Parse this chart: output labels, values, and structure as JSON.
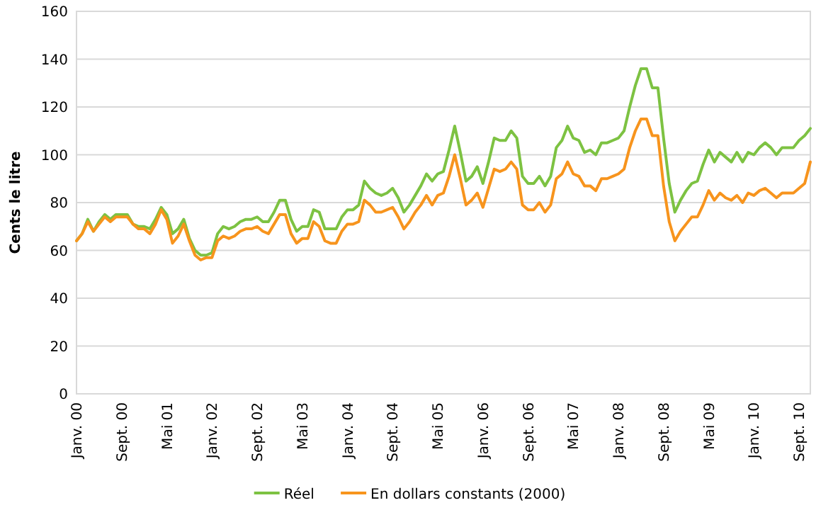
{
  "chart_data": {
    "type": "line",
    "ylabel": "Cents le litre",
    "categories": [
      "Janv. 00",
      null,
      null,
      null,
      null,
      null,
      null,
      null,
      "Sept. 00",
      null,
      null,
      null,
      null,
      null,
      null,
      null,
      "Mai 01",
      null,
      null,
      null,
      null,
      null,
      null,
      null,
      "Janv. 02",
      null,
      null,
      null,
      null,
      null,
      null,
      null,
      "Sept. 02",
      null,
      null,
      null,
      null,
      null,
      null,
      null,
      "Mai 03",
      null,
      null,
      null,
      null,
      null,
      null,
      null,
      "Janv. 04",
      null,
      null,
      null,
      null,
      null,
      null,
      null,
      "Sept. 04",
      null,
      null,
      null,
      null,
      null,
      null,
      null,
      "Mai 05",
      null,
      null,
      null,
      null,
      null,
      null,
      null,
      "Janv. 06",
      null,
      null,
      null,
      null,
      null,
      null,
      null,
      "Sept. 06",
      null,
      null,
      null,
      null,
      null,
      null,
      null,
      "Mai 07",
      null,
      null,
      null,
      null,
      null,
      null,
      null,
      "Janv. 08",
      null,
      null,
      null,
      null,
      null,
      null,
      null,
      "Sept. 08",
      null,
      null,
      null,
      null,
      null,
      null,
      null,
      "Mai 09",
      null,
      null,
      null,
      null,
      null,
      null,
      null,
      "Janv. 10",
      null,
      null,
      null,
      null,
      null,
      null,
      null,
      "Sept. 10",
      null,
      null
    ],
    "series": [
      {
        "name": "Réel",
        "color": "#7dc242",
        "values": [
          64,
          67,
          73,
          68,
          72,
          75,
          73,
          75,
          75,
          75,
          71,
          70,
          70,
          69,
          73,
          78,
          75,
          67,
          69,
          73,
          65,
          60,
          58,
          58,
          59,
          67,
          70,
          69,
          70,
          72,
          73,
          73,
          74,
          72,
          72,
          76,
          81,
          81,
          73,
          68,
          70,
          70,
          77,
          76,
          69,
          69,
          69,
          74,
          77,
          77,
          79,
          89,
          86,
          84,
          83,
          84,
          86,
          82,
          76,
          79,
          83,
          87,
          92,
          89,
          92,
          93,
          102,
          112,
          101,
          89,
          91,
          95,
          88,
          97,
          107,
          106,
          106,
          110,
          107,
          91,
          88,
          88,
          91,
          87,
          91,
          103,
          106,
          112,
          107,
          106,
          101,
          102,
          100,
          105,
          105,
          106,
          107,
          110,
          120,
          129,
          136,
          136,
          128,
          128,
          107,
          88,
          76,
          81,
          85,
          88,
          89,
          96,
          102,
          97,
          101,
          99,
          97,
          101,
          97,
          101,
          100,
          103,
          105,
          103,
          100,
          103,
          103,
          103,
          106,
          108,
          111
        ]
      },
      {
        "name": "En dollars constants (2000)",
        "color": "#f7941d",
        "values": [
          64,
          67,
          72,
          68,
          71,
          74,
          72,
          74,
          74,
          74,
          71,
          69,
          69,
          67,
          71,
          77,
          73,
          63,
          66,
          71,
          64,
          58,
          56,
          57,
          57,
          64,
          66,
          65,
          66,
          68,
          69,
          69,
          70,
          68,
          67,
          71,
          75,
          75,
          67,
          63,
          65,
          65,
          72,
          70,
          64,
          63,
          63,
          68,
          71,
          71,
          72,
          81,
          79,
          76,
          76,
          77,
          78,
          74,
          69,
          72,
          76,
          79,
          83,
          79,
          83,
          84,
          91,
          100,
          90,
          79,
          81,
          84,
          78,
          86,
          94,
          93,
          94,
          97,
          94,
          79,
          77,
          77,
          80,
          76,
          79,
          90,
          92,
          97,
          92,
          91,
          87,
          87,
          85,
          90,
          90,
          91,
          92,
          94,
          103,
          110,
          115,
          115,
          108,
          108,
          87,
          72,
          64,
          68,
          71,
          74,
          74,
          79,
          85,
          81,
          84,
          82,
          81,
          83,
          80,
          84,
          83,
          85,
          86,
          84,
          82,
          84,
          84,
          84,
          86,
          88,
          97
        ]
      }
    ],
    "ylim": [
      0,
      160
    ],
    "yticks": [
      0,
      20,
      40,
      60,
      80,
      100,
      120,
      140,
      160
    ],
    "grid": "y",
    "legend": "bottom",
    "marker": "none",
    "line_style": "solid"
  }
}
